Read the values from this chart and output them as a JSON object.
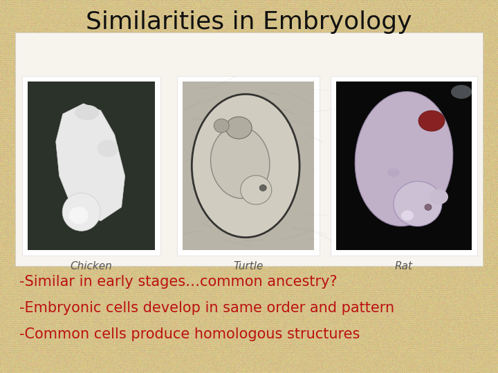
{
  "title": "Similarities in Embryology",
  "title_fontsize": 26,
  "title_color": "#111111",
  "title_font": "sans-serif",
  "background_color_avg": "#D8C48A",
  "bullet_lines": [
    "-Similar in early stages…common ancestry?",
    "-Embryonic cells develop in same order and pattern",
    "-Common cells produce homologous structures"
  ],
  "bullet_color": "#BB1111",
  "bullet_fontsize": 15,
  "panel_bg": "#F7F4EE",
  "panel_border": "#CCCCCC",
  "labels": [
    "Chicken",
    "Turtle",
    "Rat"
  ],
  "label_fontsize": 11,
  "label_color": "#555555",
  "photo_border": "#EEEEEE",
  "chicken_bg": "#2A3028",
  "turtle_bg": "#C8C4B8",
  "rat_bg": "#0A0A0A"
}
